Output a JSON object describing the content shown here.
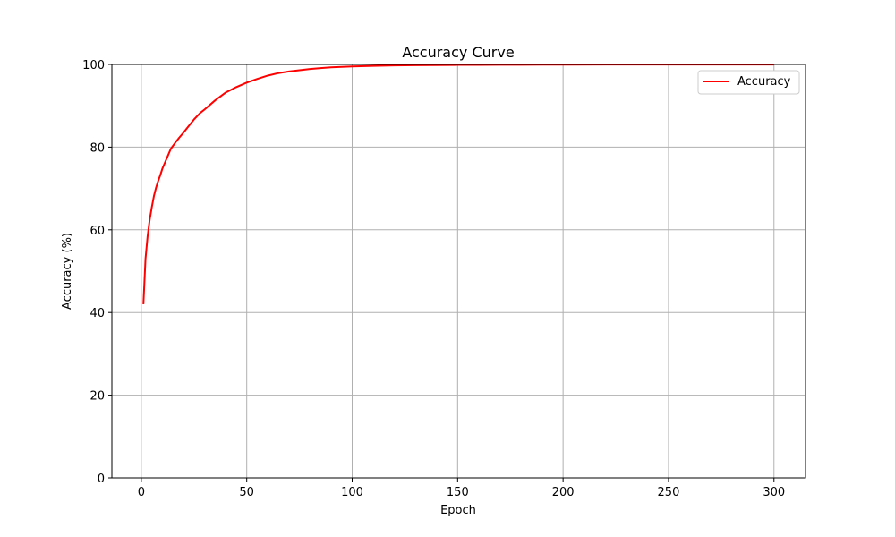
{
  "chart_data": {
    "type": "line",
    "title": "Accuracy Curve",
    "xlabel": "Epoch",
    "ylabel": "Accuracy (%)",
    "xlim": [
      -13.95,
      314.95
    ],
    "ylim": [
      0,
      100
    ],
    "xticks": [
      0,
      50,
      100,
      150,
      200,
      250,
      300
    ],
    "yticks": [
      0,
      20,
      40,
      60,
      80,
      100
    ],
    "grid": true,
    "legend_position": "top-right",
    "series": [
      {
        "name": "Accuracy",
        "color": "#ff0000",
        "x": [
          1,
          2,
          3,
          4,
          5,
          6,
          7,
          8,
          9,
          10,
          12,
          14,
          16,
          18,
          20,
          22,
          25,
          28,
          30,
          35,
          40,
          45,
          50,
          55,
          60,
          65,
          70,
          75,
          80,
          85,
          90,
          95,
          100,
          110,
          120,
          130,
          140,
          150,
          160,
          170,
          180,
          190,
          200,
          220,
          240,
          260,
          280,
          300
        ],
        "y": [
          42.0,
          53.0,
          58.5,
          62.5,
          65.5,
          68.2,
          70.2,
          71.8,
          73.2,
          74.8,
          77.2,
          79.6,
          81.0,
          82.3,
          83.5,
          84.8,
          86.7,
          88.3,
          89.1,
          91.3,
          93.2,
          94.5,
          95.6,
          96.5,
          97.3,
          97.9,
          98.3,
          98.6,
          98.9,
          99.1,
          99.3,
          99.4,
          99.5,
          99.65,
          99.75,
          99.8,
          99.85,
          99.88,
          99.9,
          99.92,
          99.93,
          99.94,
          99.95,
          99.96,
          99.97,
          99.97,
          99.98,
          99.98
        ]
      }
    ]
  }
}
